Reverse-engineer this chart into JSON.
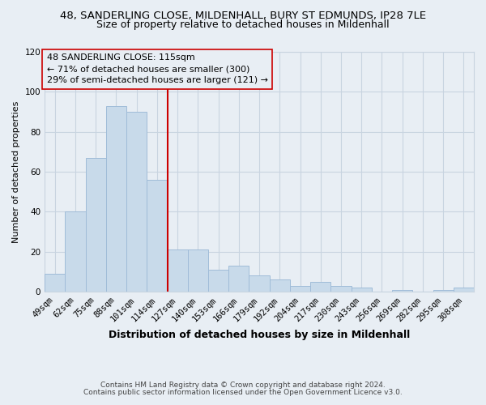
{
  "title": "48, SANDERLING CLOSE, MILDENHALL, BURY ST EDMUNDS, IP28 7LE",
  "subtitle": "Size of property relative to detached houses in Mildenhall",
  "xlabel": "Distribution of detached houses by size in Mildenhall",
  "ylabel": "Number of detached properties",
  "bar_color": "#c8daea",
  "bar_edge_color": "#a0bcd8",
  "vline_color": "#cc0000",
  "vline_x_index": 5,
  "categories": [
    "49sqm",
    "62sqm",
    "75sqm",
    "88sqm",
    "101sqm",
    "114sqm",
    "127sqm",
    "140sqm",
    "153sqm",
    "166sqm",
    "179sqm",
    "192sqm",
    "204sqm",
    "217sqm",
    "230sqm",
    "243sqm",
    "256sqm",
    "269sqm",
    "282sqm",
    "295sqm",
    "308sqm"
  ],
  "values": [
    9,
    40,
    67,
    93,
    90,
    56,
    21,
    21,
    11,
    13,
    8,
    6,
    3,
    5,
    3,
    2,
    0,
    1,
    0,
    1,
    2
  ],
  "ylim": [
    0,
    120
  ],
  "yticks": [
    0,
    20,
    40,
    60,
    80,
    100,
    120
  ],
  "annotation_title": "48 SANDERLING CLOSE: 115sqm",
  "annotation_line1": "← 71% of detached houses are smaller (300)",
  "annotation_line2": "29% of semi-detached houses are larger (121) →",
  "footnote1": "Contains HM Land Registry data © Crown copyright and database right 2024.",
  "footnote2": "Contains public sector information licensed under the Open Government Licence v3.0.",
  "background_color": "#e8eef4",
  "plot_bg_color": "#e8eef4",
  "grid_color": "#c8d4e0",
  "title_fontsize": 9.5,
  "subtitle_fontsize": 9,
  "xlabel_fontsize": 9,
  "ylabel_fontsize": 8,
  "tick_fontsize": 7.5,
  "annotation_fontsize": 8,
  "footnote_fontsize": 6.5
}
